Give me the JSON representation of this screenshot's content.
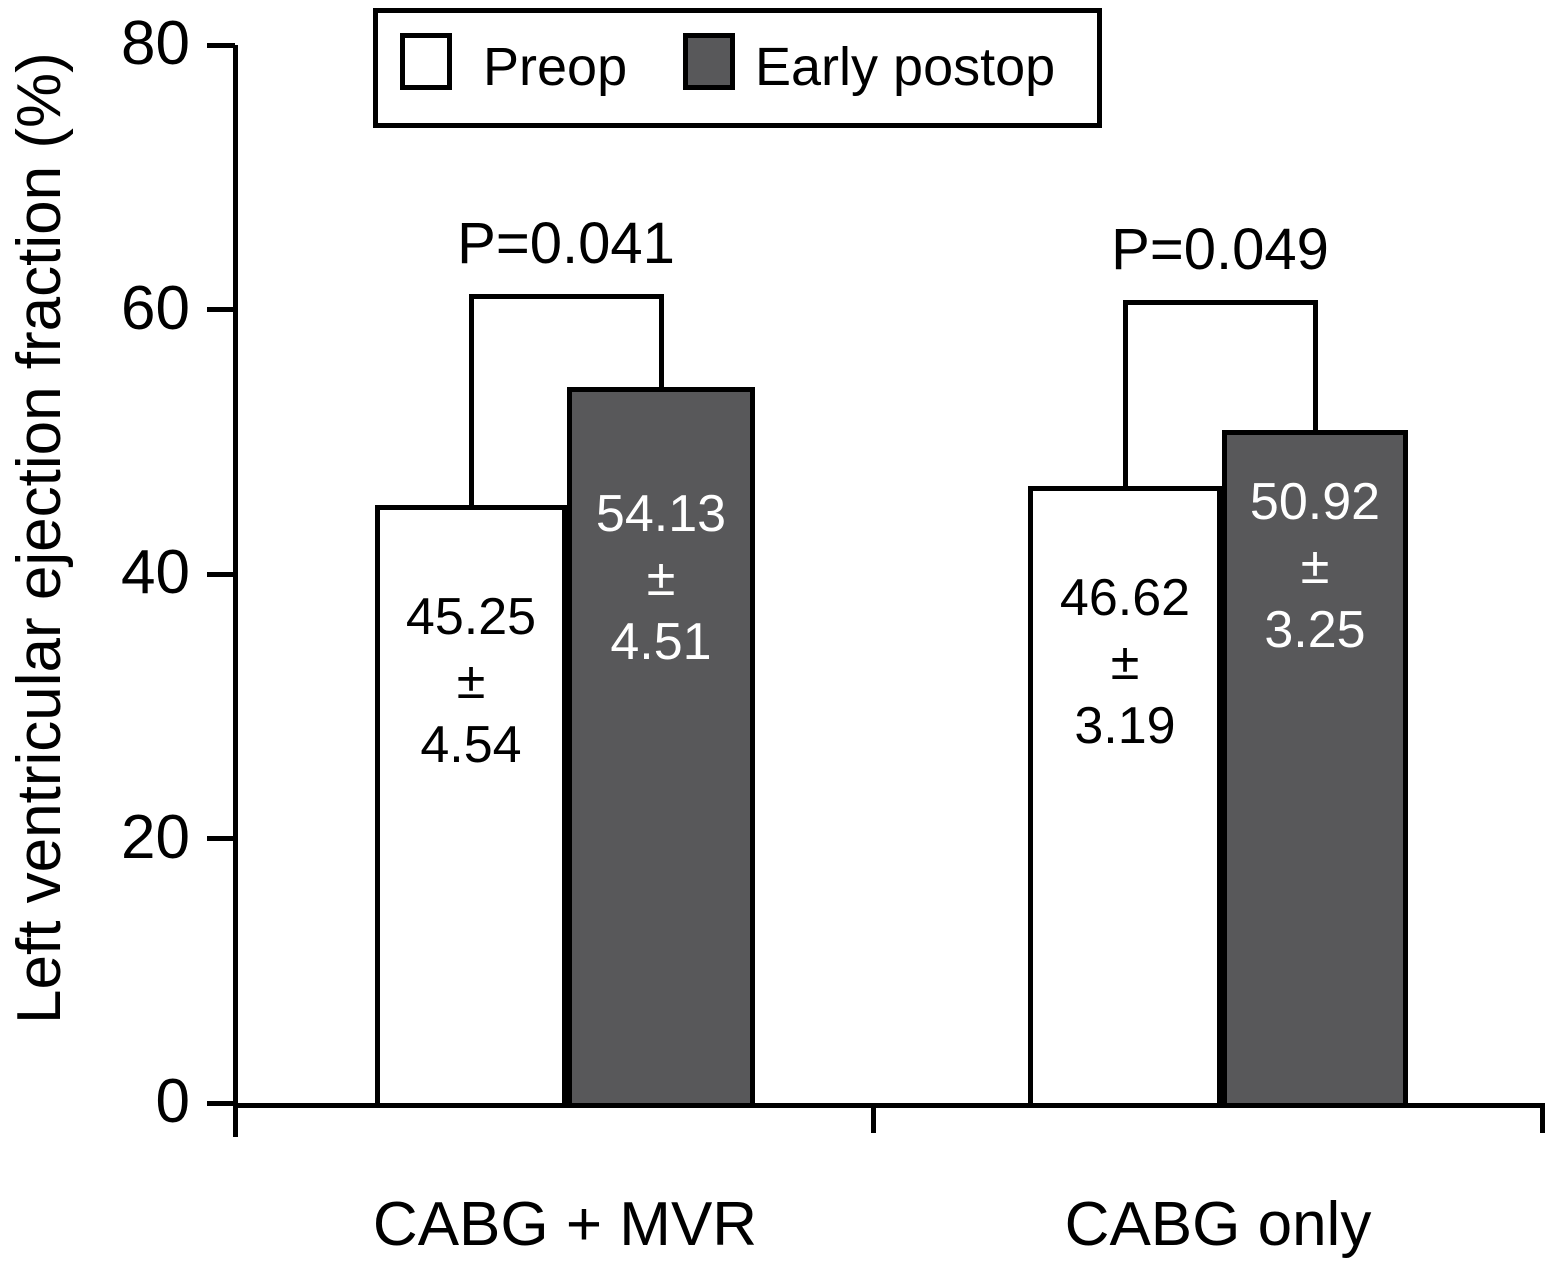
{
  "chart_data": {
    "type": "bar",
    "title": "",
    "ylabel": "Left ventricular ejection fraction (%)",
    "xlabel": "",
    "ylim": [
      0,
      80
    ],
    "yticks": [
      0,
      20,
      40,
      60,
      80
    ],
    "categories": [
      "CABG + MVR",
      "CABG only"
    ],
    "series": [
      {
        "name": "Preop",
        "values": [
          45.25,
          46.62
        ],
        "sd": [
          4.54,
          3.19
        ],
        "fill": "#ffffff",
        "label_color": "#000000"
      },
      {
        "name": "Early postop",
        "values": [
          54.13,
          50.92
        ],
        "sd": [
          4.51,
          3.25
        ],
        "fill": "#58585a",
        "label_color": "#ffffff"
      }
    ],
    "pm": "±",
    "annotations": [
      {
        "category": "CABG + MVR",
        "text": "P=0.041",
        "bracket_top_value": 61.2
      },
      {
        "category": "CABG only",
        "text": "P=0.049",
        "bracket_top_value": 60.7
      }
    ],
    "legend_position": "top",
    "grid": false,
    "bar_label_format": "mean ± sd"
  },
  "colors": {
    "axis": "#000000",
    "background": "#ffffff"
  }
}
